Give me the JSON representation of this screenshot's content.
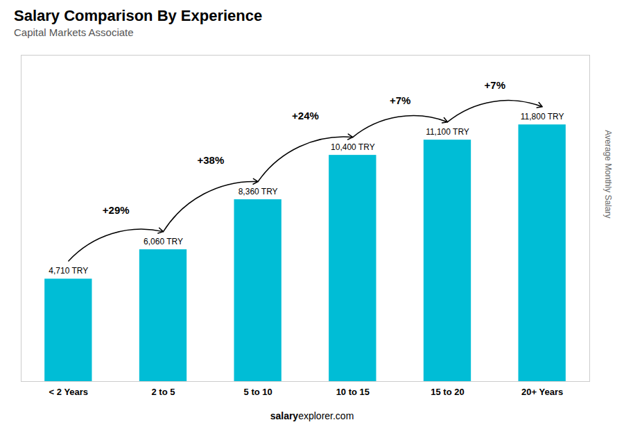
{
  "chart_data": {
    "type": "bar",
    "title": "Salary Comparison By Experience",
    "subtitle": "Capital Markets Associate",
    "categories": [
      "< 2 Years",
      "2 to 5",
      "5 to 10",
      "10 to 15",
      "15 to 20",
      "20+ Years"
    ],
    "values": [
      4710,
      6060,
      8360,
      10400,
      11100,
      11800
    ],
    "value_labels": [
      "4,710 TRY",
      "6,060 TRY",
      "8,360 TRY",
      "10,400 TRY",
      "11,100 TRY",
      "11,800 TRY"
    ],
    "data_labels": true,
    "annotations": [
      "+29%",
      "+38%",
      "+24%",
      "+7%",
      "+7%"
    ],
    "ylabel": "Average Monthly Salary",
    "footer": [
      "salary",
      "explorer.com"
    ],
    "color": "#00bdd6",
    "ylim": [
      0,
      15000
    ],
    "tick_labels": "x",
    "grid": false
  }
}
